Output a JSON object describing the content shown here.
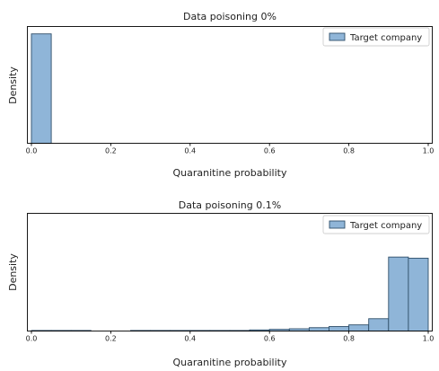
{
  "chart_data": [
    {
      "type": "bar",
      "title": "Data poisoning 0%",
      "xlabel": "Quaranitine probability",
      "ylabel": "Density",
      "xlim": [
        0,
        1
      ],
      "ylim": [
        0,
        19.0
      ],
      "x_ticks": [
        "0.0",
        "0.2",
        "0.4",
        "0.6",
        "0.8",
        "1.0"
      ],
      "bin_width": 0.05,
      "bins": [
        0.0,
        0.05,
        0.1,
        0.15,
        0.2,
        0.25,
        0.3,
        0.35,
        0.4,
        0.45,
        0.5,
        0.55,
        0.6,
        0.65,
        0.7,
        0.75,
        0.8,
        0.85,
        0.9,
        0.95
      ],
      "series": [
        {
          "name": "Target company",
          "values": [
            17.8,
            0,
            0,
            0,
            0,
            0,
            0,
            0,
            0,
            0,
            0,
            0,
            0,
            0,
            0,
            0,
            0,
            0,
            0,
            0
          ]
        }
      ],
      "grid": false,
      "legend": "top-right",
      "colors": {
        "fill": "#8fb5d8",
        "edge": "#2f4f6a"
      }
    },
    {
      "type": "bar",
      "title": "Data poisoning 0.1%",
      "xlabel": "Quaranitine probability",
      "ylabel": "Density",
      "xlim": [
        0,
        1
      ],
      "ylim": [
        0,
        10.5
      ],
      "x_ticks": [
        "0.0",
        "0.2",
        "0.4",
        "0.6",
        "0.8",
        "1.0"
      ],
      "bin_width": 0.05,
      "bins": [
        0.0,
        0.05,
        0.1,
        0.15,
        0.2,
        0.25,
        0.3,
        0.35,
        0.4,
        0.45,
        0.5,
        0.55,
        0.6,
        0.65,
        0.7,
        0.75,
        0.8,
        0.85,
        0.9,
        0.95
      ],
      "series": [
        {
          "name": "Target company",
          "values": [
            0.05,
            0.05,
            0.05,
            0,
            0,
            0.05,
            0.05,
            0.05,
            0.05,
            0.05,
            0.05,
            0.1,
            0.15,
            0.2,
            0.3,
            0.4,
            0.55,
            1.1,
            6.6,
            6.5
          ]
        }
      ],
      "grid": false,
      "legend": "top-right",
      "colors": {
        "fill": "#8fb5d8",
        "edge": "#2f4f6a"
      }
    }
  ]
}
